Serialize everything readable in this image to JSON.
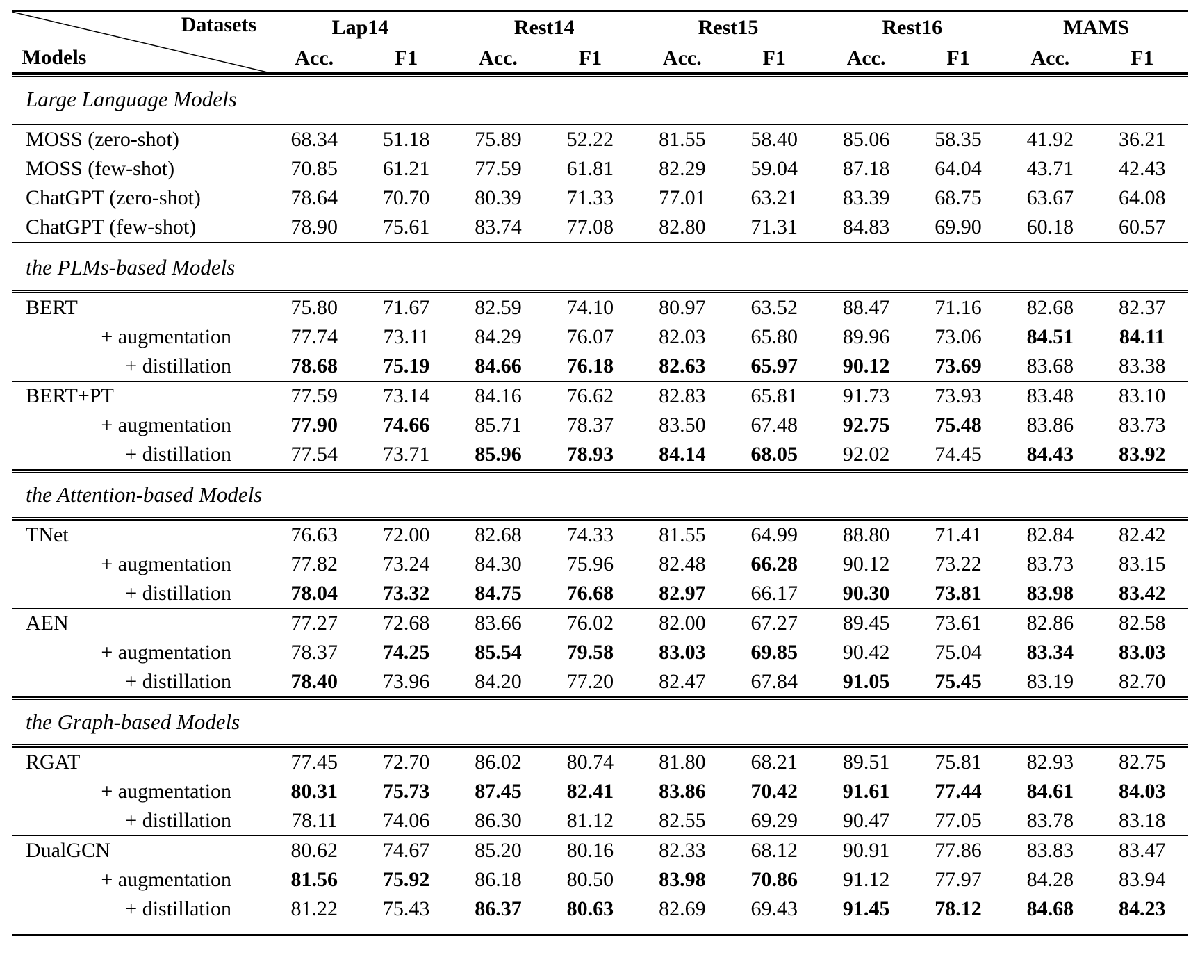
{
  "table": {
    "corner": {
      "datasets_label": "Datasets",
      "models_label": "Models"
    },
    "datasets": [
      "Lap14",
      "Rest14",
      "Rest15",
      "Rest16",
      "MAMS"
    ],
    "subcolumns": [
      "Acc.",
      "F1"
    ],
    "sections": [
      {
        "title": "Large Language Models",
        "groups": [
          {
            "rows": [
              {
                "label": "MOSS (zero-shot)",
                "indent": false,
                "values": [
                  "68.34",
                  "51.18",
                  "75.89",
                  "52.22",
                  "81.55",
                  "58.40",
                  "85.06",
                  "58.35",
                  "41.92",
                  "36.21"
                ],
                "bold": []
              },
              {
                "label": "MOSS (few-shot)",
                "indent": false,
                "values": [
                  "70.85",
                  "61.21",
                  "77.59",
                  "61.81",
                  "82.29",
                  "59.04",
                  "87.18",
                  "64.04",
                  "43.71",
                  "42.43"
                ],
                "bold": []
              },
              {
                "label": "ChatGPT (zero-shot)",
                "indent": false,
                "values": [
                  "78.64",
                  "70.70",
                  "80.39",
                  "71.33",
                  "77.01",
                  "63.21",
                  "83.39",
                  "68.75",
                  "63.67",
                  "64.08"
                ],
                "bold": []
              },
              {
                "label": "ChatGPT (few-shot)",
                "indent": false,
                "values": [
                  "78.90",
                  "75.61",
                  "83.74",
                  "77.08",
                  "82.80",
                  "71.31",
                  "84.83",
                  "69.90",
                  "60.18",
                  "60.57"
                ],
                "bold": []
              }
            ]
          }
        ]
      },
      {
        "title": "the PLMs-based Models",
        "groups": [
          {
            "rows": [
              {
                "label": "BERT",
                "indent": false,
                "values": [
                  "75.80",
                  "71.67",
                  "82.59",
                  "74.10",
                  "80.97",
                  "63.52",
                  "88.47",
                  "71.16",
                  "82.68",
                  "82.37"
                ],
                "bold": []
              },
              {
                "label": "+ augmentation",
                "indent": true,
                "values": [
                  "77.74",
                  "73.11",
                  "84.29",
                  "76.07",
                  "82.03",
                  "65.80",
                  "89.96",
                  "73.06",
                  "84.51",
                  "84.11"
                ],
                "bold": [
                  8,
                  9
                ]
              },
              {
                "label": "+ distillation",
                "indent": true,
                "values": [
                  "78.68",
                  "75.19",
                  "84.66",
                  "76.18",
                  "82.63",
                  "65.97",
                  "90.12",
                  "73.69",
                  "83.68",
                  "83.38"
                ],
                "bold": [
                  0,
                  1,
                  2,
                  3,
                  4,
                  5,
                  6,
                  7
                ]
              }
            ]
          },
          {
            "rows": [
              {
                "label": "BERT+PT",
                "indent": false,
                "values": [
                  "77.59",
                  "73.14",
                  "84.16",
                  "76.62",
                  "82.83",
                  "65.81",
                  "91.73",
                  "73.93",
                  "83.48",
                  "83.10"
                ],
                "bold": []
              },
              {
                "label": "+ augmentation",
                "indent": true,
                "values": [
                  "77.90",
                  "74.66",
                  "85.71",
                  "78.37",
                  "83.50",
                  "67.48",
                  "92.75",
                  "75.48",
                  "83.86",
                  "83.73"
                ],
                "bold": [
                  0,
                  1,
                  6,
                  7
                ]
              },
              {
                "label": "+ distillation",
                "indent": true,
                "values": [
                  "77.54",
                  "73.71",
                  "85.96",
                  "78.93",
                  "84.14",
                  "68.05",
                  "92.02",
                  "74.45",
                  "84.43",
                  "83.92"
                ],
                "bold": [
                  2,
                  3,
                  4,
                  5,
                  8,
                  9
                ]
              }
            ]
          }
        ]
      },
      {
        "title": "the Attention-based Models",
        "groups": [
          {
            "rows": [
              {
                "label": "TNet",
                "indent": false,
                "values": [
                  "76.63",
                  "72.00",
                  "82.68",
                  "74.33",
                  "81.55",
                  "64.99",
                  "88.80",
                  "71.41",
                  "82.84",
                  "82.42"
                ],
                "bold": []
              },
              {
                "label": "+ augmentation",
                "indent": true,
                "values": [
                  "77.82",
                  "73.24",
                  "84.30",
                  "75.96",
                  "82.48",
                  "66.28",
                  "90.12",
                  "73.22",
                  "83.73",
                  "83.15"
                ],
                "bold": [
                  5
                ]
              },
              {
                "label": "+ distillation",
                "indent": true,
                "values": [
                  "78.04",
                  "73.32",
                  "84.75",
                  "76.68",
                  "82.97",
                  "66.17",
                  "90.30",
                  "73.81",
                  "83.98",
                  "83.42"
                ],
                "bold": [
                  0,
                  1,
                  2,
                  3,
                  4,
                  6,
                  7,
                  8,
                  9
                ]
              }
            ]
          },
          {
            "rows": [
              {
                "label": "AEN",
                "indent": false,
                "values": [
                  "77.27",
                  "72.68",
                  "83.66",
                  "76.02",
                  "82.00",
                  "67.27",
                  "89.45",
                  "73.61",
                  "82.86",
                  "82.58"
                ],
                "bold": []
              },
              {
                "label": "+ augmentation",
                "indent": true,
                "values": [
                  "78.37",
                  "74.25",
                  "85.54",
                  "79.58",
                  "83.03",
                  "69.85",
                  "90.42",
                  "75.04",
                  "83.34",
                  "83.03"
                ],
                "bold": [
                  1,
                  2,
                  3,
                  4,
                  5,
                  8,
                  9
                ]
              },
              {
                "label": "+ distillation",
                "indent": true,
                "values": [
                  "78.40",
                  "73.96",
                  "84.20",
                  "77.20",
                  "82.47",
                  "67.84",
                  "91.05",
                  "75.45",
                  "83.19",
                  "82.70"
                ],
                "bold": [
                  0,
                  6,
                  7
                ]
              }
            ]
          }
        ]
      },
      {
        "title": "the Graph-based Models",
        "groups": [
          {
            "rows": [
              {
                "label": "RGAT",
                "indent": false,
                "values": [
                  "77.45",
                  "72.70",
                  "86.02",
                  "80.74",
                  "81.80",
                  "68.21",
                  "89.51",
                  "75.81",
                  "82.93",
                  "82.75"
                ],
                "bold": []
              },
              {
                "label": "+ augmentation",
                "indent": true,
                "values": [
                  "80.31",
                  "75.73",
                  "87.45",
                  "82.41",
                  "83.86",
                  "70.42",
                  "91.61",
                  "77.44",
                  "84.61",
                  "84.03"
                ],
                "bold": [
                  0,
                  1,
                  2,
                  3,
                  4,
                  5,
                  6,
                  7,
                  8,
                  9
                ]
              },
              {
                "label": "+ distillation",
                "indent": true,
                "values": [
                  "78.11",
                  "74.06",
                  "86.30",
                  "81.12",
                  "82.55",
                  "69.29",
                  "90.47",
                  "77.05",
                  "83.78",
                  "83.18"
                ],
                "bold": []
              }
            ]
          },
          {
            "rows": [
              {
                "label": "DualGCN",
                "indent": false,
                "values": [
                  "80.62",
                  "74.67",
                  "85.20",
                  "80.16",
                  "82.33",
                  "68.12",
                  "90.91",
                  "77.86",
                  "83.83",
                  "83.47"
                ],
                "bold": []
              },
              {
                "label": "+ augmentation",
                "indent": true,
                "values": [
                  "81.56",
                  "75.92",
                  "86.18",
                  "80.50",
                  "83.98",
                  "70.86",
                  "91.12",
                  "77.97",
                  "84.28",
                  "83.94"
                ],
                "bold": [
                  0,
                  1,
                  4,
                  5
                ]
              },
              {
                "label": "+ distillation",
                "indent": true,
                "values": [
                  "81.22",
                  "75.43",
                  "86.37",
                  "80.63",
                  "82.69",
                  "69.43",
                  "91.45",
                  "78.12",
                  "84.68",
                  "84.23"
                ],
                "bold": [
                  2,
                  3,
                  6,
                  7,
                  8,
                  9
                ]
              }
            ]
          }
        ]
      }
    ]
  }
}
